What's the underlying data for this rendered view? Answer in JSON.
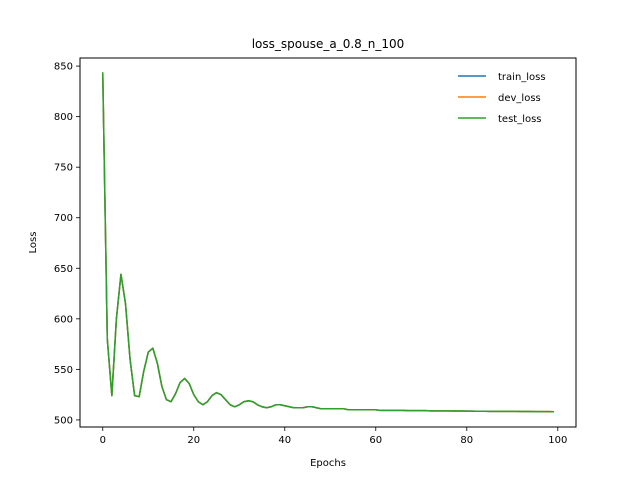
{
  "chart_data": {
    "type": "line",
    "title": "loss_spouse_a_0.8_n_100",
    "xlabel": "Epochs",
    "ylabel": "Loss",
    "xlim": [
      -5,
      104
    ],
    "ylim": [
      493,
      858
    ],
    "xticks": [
      0,
      20,
      40,
      60,
      80,
      100
    ],
    "yticks": [
      500,
      550,
      600,
      650,
      700,
      750,
      800,
      850
    ],
    "grid": false,
    "legend_position": "top-right",
    "x": [
      0,
      1,
      2,
      3,
      4,
      5,
      6,
      7,
      8,
      9,
      10,
      11,
      12,
      13,
      14,
      15,
      16,
      17,
      18,
      19,
      20,
      21,
      22,
      23,
      24,
      25,
      26,
      27,
      28,
      29,
      30,
      31,
      32,
      33,
      34,
      35,
      36,
      37,
      38,
      39,
      40,
      41,
      42,
      43,
      44,
      45,
      46,
      47,
      48,
      49,
      50,
      51,
      52,
      53,
      54,
      55,
      56,
      57,
      58,
      59,
      60,
      61,
      62,
      63,
      64,
      65,
      66,
      67,
      68,
      69,
      70,
      71,
      72,
      73,
      74,
      75,
      76,
      77,
      78,
      79,
      80,
      81,
      82,
      83,
      84,
      85,
      86,
      87,
      88,
      89,
      90,
      91,
      92,
      93,
      94,
      95,
      96,
      97,
      98,
      99
    ],
    "series": [
      {
        "name": "train_loss",
        "color": "#1f77b4",
        "values": [
          843,
          580,
          524,
          600,
          644,
          615,
          560,
          524,
          523,
          548,
          567,
          571,
          556,
          533,
          520,
          518,
          526,
          537,
          541,
          536,
          525,
          518,
          515,
          518,
          524,
          527,
          525,
          520,
          515,
          513,
          515,
          518,
          519,
          518,
          515,
          513,
          512,
          513,
          515,
          515,
          514,
          513,
          512,
          512,
          512,
          513,
          513,
          512,
          511,
          511,
          511,
          511,
          511,
          511,
          510,
          510,
          510,
          510,
          510,
          510,
          510,
          509.5,
          509.5,
          509.5,
          509.5,
          509.5,
          509.5,
          509.2,
          509.2,
          509.2,
          509.2,
          509.2,
          509,
          509,
          509,
          509,
          509,
          508.8,
          508.8,
          508.8,
          508.7,
          508.7,
          508.6,
          508.6,
          508.6,
          508.5,
          508.5,
          508.5,
          508.5,
          508.4,
          508.4,
          508.4,
          508.3,
          508.3,
          508.3,
          508.2,
          508.2,
          508.2,
          508.2,
          508.1
        ]
      },
      {
        "name": "dev_loss",
        "color": "#ff7f0e",
        "values": [
          843,
          580,
          524,
          600,
          644,
          615,
          560,
          524,
          523,
          548,
          567,
          571,
          556,
          533,
          520,
          518,
          526,
          537,
          541,
          536,
          525,
          518,
          515,
          518,
          524,
          527,
          525,
          520,
          515,
          513,
          515,
          518,
          519,
          518,
          515,
          513,
          512,
          513,
          515,
          515,
          514,
          513,
          512,
          512,
          512,
          513,
          513,
          512,
          511,
          511,
          511,
          511,
          511,
          511,
          510,
          510,
          510,
          510,
          510,
          510,
          510,
          509.5,
          509.5,
          509.5,
          509.5,
          509.5,
          509.5,
          509.2,
          509.2,
          509.2,
          509.2,
          509.2,
          509,
          509,
          509,
          509,
          509,
          508.8,
          508.8,
          508.8,
          508.7,
          508.7,
          508.6,
          508.6,
          508.6,
          508.5,
          508.5,
          508.5,
          508.5,
          508.4,
          508.4,
          508.4,
          508.3,
          508.3,
          508.3,
          508.2,
          508.2,
          508.2,
          508.2,
          508.1
        ]
      },
      {
        "name": "test_loss",
        "color": "#2ca02c",
        "values": [
          843,
          580,
          524,
          600,
          644,
          615,
          560,
          524,
          523,
          548,
          567,
          571,
          556,
          533,
          520,
          518,
          526,
          537,
          541,
          536,
          525,
          518,
          515,
          518,
          524,
          527,
          525,
          520,
          515,
          513,
          515,
          518,
          519,
          518,
          515,
          513,
          512,
          513,
          515,
          515,
          514,
          513,
          512,
          512,
          512,
          513,
          513,
          512,
          511,
          511,
          511,
          511,
          511,
          511,
          510,
          510,
          510,
          510,
          510,
          510,
          510,
          509.5,
          509.5,
          509.5,
          509.5,
          509.5,
          509.5,
          509.2,
          509.2,
          509.2,
          509.2,
          509.2,
          509,
          509,
          509,
          509,
          509,
          508.8,
          508.8,
          508.8,
          508.7,
          508.7,
          508.6,
          508.6,
          508.6,
          508.5,
          508.5,
          508.5,
          508.5,
          508.4,
          508.4,
          508.4,
          508.3,
          508.3,
          508.3,
          508.2,
          508.2,
          508.2,
          508.2,
          508.1
        ]
      }
    ]
  }
}
